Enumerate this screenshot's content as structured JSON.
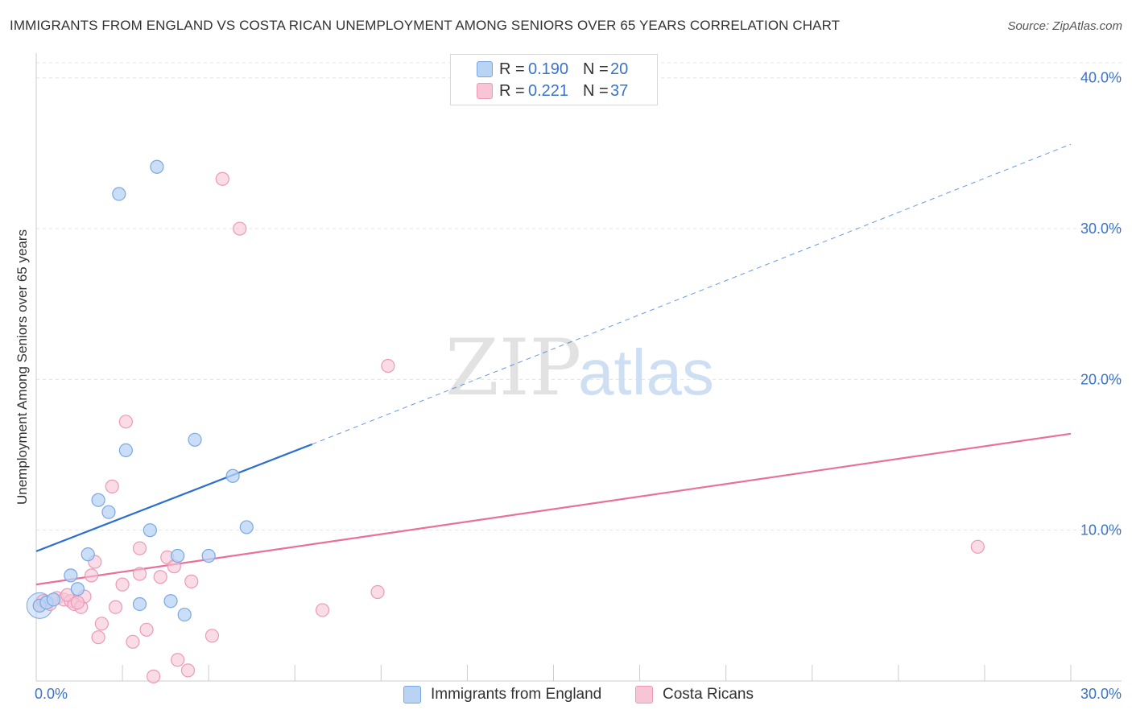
{
  "header": {
    "title": "IMMIGRANTS FROM ENGLAND VS COSTA RICAN UNEMPLOYMENT AMONG SENIORS OVER 65 YEARS CORRELATION CHART",
    "source": "Source: ZipAtlas.com"
  },
  "legend_top": {
    "rows": [
      {
        "r_label": "R =",
        "r_value": "0.190",
        "n_label": "N =",
        "n_value": "20"
      },
      {
        "r_label": "R =",
        "r_value": "0.221",
        "n_label": "N =",
        "n_value": "37"
      }
    ]
  },
  "legend_bottom": {
    "items": [
      "Immigrants from England",
      "Costa Ricans"
    ]
  },
  "colors": {
    "blue_fill": "#b8d3f4",
    "blue_stroke": "#7aa8e0",
    "blue_line": "#2a6fd0",
    "pink_fill": "#f7c5d6",
    "pink_stroke": "#eb9ab8",
    "pink_line": "#e8709a",
    "axis_label": "#3b73c8",
    "grid": "#e4e4e4",
    "watermark": "#e2e2e2"
  },
  "watermark": {
    "part1": "ZIP",
    "part2": "atlas"
  },
  "chart_data": {
    "type": "scatter",
    "title": "IMMIGRANTS FROM ENGLAND VS COSTA RICAN UNEMPLOYMENT AMONG SENIORS OVER 65 YEARS CORRELATION CHART",
    "xlabel": "",
    "ylabel": "Unemployment Among Seniors over 65 years",
    "xlim": [
      0,
      30
    ],
    "ylim": [
      0,
      41
    ],
    "x_tick_labels": [
      "0.0%",
      "30.0%"
    ],
    "y_ticks": [
      10,
      20,
      30,
      40
    ],
    "y_tick_labels": [
      "10.0%",
      "20.0%",
      "30.0%",
      "40.0%"
    ],
    "grid": true,
    "series": [
      {
        "name": "Immigrants from England",
        "r": 0.19,
        "n": 20,
        "points": [
          [
            0.1,
            5.0
          ],
          [
            0.3,
            5.2
          ],
          [
            0.5,
            5.4
          ],
          [
            1.0,
            7.0
          ],
          [
            1.2,
            6.1
          ],
          [
            1.5,
            8.4
          ],
          [
            1.8,
            12.0
          ],
          [
            2.1,
            11.2
          ],
          [
            2.4,
            32.3
          ],
          [
            2.6,
            15.3
          ],
          [
            3.0,
            5.1
          ],
          [
            3.3,
            10.0
          ],
          [
            3.5,
            34.1
          ],
          [
            3.9,
            5.3
          ],
          [
            4.1,
            8.3
          ],
          [
            4.3,
            4.4
          ],
          [
            4.6,
            16.0
          ],
          [
            5.0,
            8.3
          ],
          [
            5.7,
            13.6
          ],
          [
            6.1,
            10.2
          ]
        ],
        "trend": {
          "x_solid": [
            0,
            8
          ],
          "y_solid": [
            8.6,
            15.7
          ],
          "x_dashed": [
            8,
            30
          ],
          "y_dashed": [
            15.7,
            35.6
          ]
        }
      },
      {
        "name": "Costa Ricans",
        "r": 0.221,
        "n": 37,
        "points": [
          [
            0.1,
            5.0
          ],
          [
            0.2,
            5.3
          ],
          [
            0.4,
            5.1
          ],
          [
            0.6,
            5.5
          ],
          [
            0.8,
            5.4
          ],
          [
            1.0,
            5.3
          ],
          [
            1.1,
            5.1
          ],
          [
            1.3,
            4.9
          ],
          [
            1.4,
            5.6
          ],
          [
            1.6,
            7.0
          ],
          [
            1.7,
            7.9
          ],
          [
            1.8,
            2.9
          ],
          [
            1.9,
            3.8
          ],
          [
            2.2,
            12.9
          ],
          [
            2.3,
            4.9
          ],
          [
            2.5,
            6.4
          ],
          [
            2.6,
            17.2
          ],
          [
            2.8,
            2.6
          ],
          [
            3.0,
            7.1
          ],
          [
            3.0,
            8.8
          ],
          [
            3.2,
            3.4
          ],
          [
            3.4,
            0.3
          ],
          [
            3.6,
            6.9
          ],
          [
            3.8,
            8.2
          ],
          [
            4.0,
            7.6
          ],
          [
            4.1,
            1.4
          ],
          [
            4.4,
            0.7
          ],
          [
            4.5,
            6.6
          ],
          [
            5.1,
            3.0
          ],
          [
            5.4,
            33.3
          ],
          [
            5.9,
            30.0
          ],
          [
            8.3,
            4.7
          ],
          [
            9.9,
            5.9
          ],
          [
            10.2,
            20.9
          ],
          [
            27.3,
            8.9
          ],
          [
            1.2,
            5.2
          ],
          [
            0.9,
            5.7
          ]
        ],
        "trend": {
          "x_solid": [
            0,
            30
          ],
          "y_solid": [
            6.4,
            16.4
          ]
        }
      }
    ]
  }
}
